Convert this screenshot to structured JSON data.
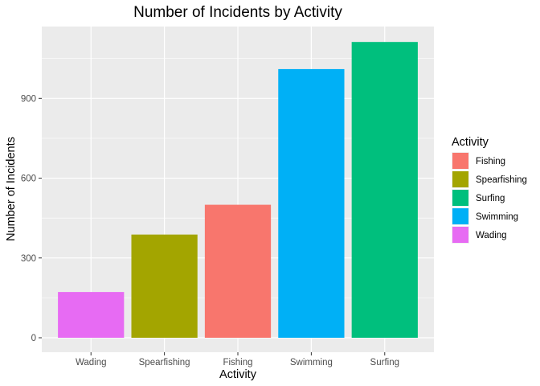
{
  "chart_data": {
    "type": "bar",
    "title": "Number of Incidents by Activity",
    "xlabel": "Activity",
    "ylabel": "Number of Incidents",
    "categories": [
      "Wading",
      "Spearfishing",
      "Fishing",
      "Swimming",
      "Surfing"
    ],
    "values": [
      172,
      388,
      500,
      1010,
      1112
    ],
    "colors": [
      "#E76BF3",
      "#A3A500",
      "#F8766D",
      "#00B0F6",
      "#00BF7D"
    ],
    "ylim": [
      0,
      1170
    ],
    "yticks": [
      0,
      300,
      600,
      900
    ],
    "ytick_labels": [
      "0",
      "300",
      "600",
      "900"
    ],
    "grid": true,
    "legend": {
      "title": "Activity",
      "position": "right",
      "entries": [
        {
          "label": "Fishing",
          "color": "#F8766D"
        },
        {
          "label": "Spearfishing",
          "color": "#A3A500"
        },
        {
          "label": "Surfing",
          "color": "#00BF7D"
        },
        {
          "label": "Swimming",
          "color": "#00B0F6"
        },
        {
          "label": "Wading",
          "color": "#E76BF3"
        }
      ]
    },
    "panel_background": "#EBEBEB",
    "gridline_color": "#FFFFFF"
  }
}
